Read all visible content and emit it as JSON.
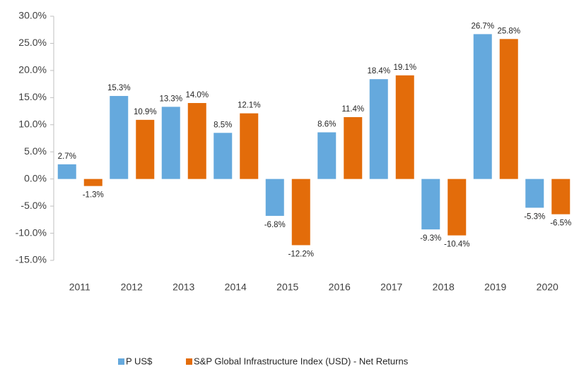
{
  "chart_data": {
    "type": "bar",
    "categories": [
      "2011",
      "2012",
      "2013",
      "2014",
      "2015",
      "2016",
      "2017",
      "2018",
      "2019",
      "2020"
    ],
    "series": [
      {
        "name": "P US$",
        "color": "#65a9dd",
        "values": [
          2.7,
          15.3,
          13.3,
          8.5,
          -6.8,
          8.6,
          18.4,
          -9.3,
          26.7,
          -5.3
        ],
        "value_labels": [
          "2.7%",
          "15.3%",
          "13.3%",
          "8.5%",
          "-6.8%",
          "8.6%",
          "18.4%",
          "-9.3%",
          "26.7%",
          "-5.3%"
        ]
      },
      {
        "name": "S&P Global Infrastructure Index (USD) - Net Returns",
        "color": "#e36c0a",
        "values": [
          -1.3,
          10.9,
          14.0,
          12.1,
          -12.2,
          11.4,
          19.1,
          -10.4,
          25.8,
          -6.5
        ],
        "value_labels": [
          "-1.3%",
          "10.9%",
          "14.0%",
          "12.1%",
          "-12.2%",
          "11.4%",
          "19.1%",
          "-10.4%",
          "25.8%",
          "-6.5%"
        ]
      }
    ],
    "ylim": [
      -15,
      30
    ],
    "yticks": [
      {
        "value": -15,
        "label": "-15.0%"
      },
      {
        "value": -10,
        "label": "-10.0%"
      },
      {
        "value": -5,
        "label": "-5.0%"
      },
      {
        "value": 0,
        "label": "0.0%"
      },
      {
        "value": 5,
        "label": "5.0%"
      },
      {
        "value": 10,
        "label": "10.0%"
      },
      {
        "value": 15,
        "label": "15.0%"
      },
      {
        "value": 20,
        "label": "20.0%"
      },
      {
        "value": 25,
        "label": "25.0%"
      },
      {
        "value": 30,
        "label": "30.0%"
      }
    ],
    "grid": false,
    "legend": "bottom"
  }
}
